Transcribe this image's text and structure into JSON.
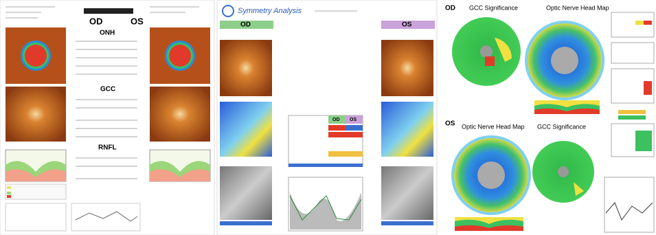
{
  "left_report": {
    "eye_labels": [
      "OD",
      "OS"
    ],
    "sections": [
      "ONH",
      "GCC",
      "RNFL"
    ]
  },
  "symmetry": {
    "title": "Symmetry Analysis",
    "columns": [
      "OD",
      "OS"
    ],
    "table_header": [
      "OD",
      "OS"
    ]
  },
  "maps": {
    "top_eye": "OD",
    "top_titles": [
      "GCC Significance",
      "Optic Nerve Head Map"
    ],
    "bottom_eye": "OS",
    "bottom_titles": [
      "Optic Nerve Head Map",
      "GCC Significance"
    ]
  }
}
